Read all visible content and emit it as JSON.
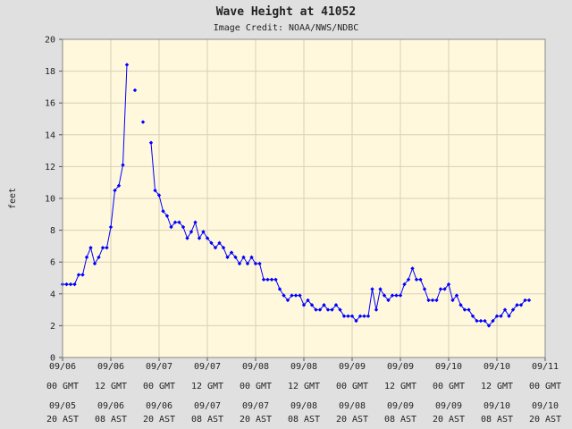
{
  "chart_data": {
    "type": "line",
    "title": "Wave Height at 41052",
    "subtitle": "Image Credit: NOAA/NWS/NDBC",
    "ylabel": "feet",
    "xlabel": "",
    "ylim": [
      0,
      20
    ],
    "yticks": [
      0,
      2,
      4,
      6,
      8,
      10,
      12,
      14,
      16,
      18,
      20
    ],
    "xlim": [
      0,
      120
    ],
    "grid": true,
    "xticks": [
      {
        "hour": 0,
        "gmt": [
          "09/06",
          "00 GMT"
        ],
        "ast": [
          "09/05",
          "20 AST"
        ]
      },
      {
        "hour": 12,
        "gmt": [
          "09/06",
          "12 GMT"
        ],
        "ast": [
          "09/06",
          "08 AST"
        ]
      },
      {
        "hour": 24,
        "gmt": [
          "09/07",
          "00 GMT"
        ],
        "ast": [
          "09/06",
          "20 AST"
        ]
      },
      {
        "hour": 36,
        "gmt": [
          "09/07",
          "12 GMT"
        ],
        "ast": [
          "09/07",
          "08 AST"
        ]
      },
      {
        "hour": 48,
        "gmt": [
          "09/08",
          "00 GMT"
        ],
        "ast": [
          "09/07",
          "20 AST"
        ]
      },
      {
        "hour": 60,
        "gmt": [
          "09/08",
          "12 GMT"
        ],
        "ast": [
          "09/08",
          "08 AST"
        ]
      },
      {
        "hour": 72,
        "gmt": [
          "09/09",
          "00 GMT"
        ],
        "ast": [
          "09/08",
          "20 AST"
        ]
      },
      {
        "hour": 84,
        "gmt": [
          "09/09",
          "12 GMT"
        ],
        "ast": [
          "09/09",
          "08 AST"
        ]
      },
      {
        "hour": 96,
        "gmt": [
          "09/10",
          "00 GMT"
        ],
        "ast": [
          "09/09",
          "20 AST"
        ]
      },
      {
        "hour": 108,
        "gmt": [
          "09/10",
          "12 GMT"
        ],
        "ast": [
          "09/10",
          "08 AST"
        ]
      },
      {
        "hour": 120,
        "gmt": [
          "09/11",
          "00 GMT"
        ],
        "ast": [
          "09/10",
          "20 AST"
        ]
      }
    ],
    "colors": {
      "background": "#e0e0e0",
      "plot_bg": "#fff8dc",
      "grid": "#d8d0b8",
      "line": "#0000ff",
      "marker": "#0000ff"
    },
    "series": [
      {
        "x": [
          0,
          1,
          2,
          3,
          4,
          5,
          6,
          7,
          8,
          9,
          10,
          11,
          12,
          13,
          14,
          15,
          16,
          17,
          18,
          19,
          20,
          21,
          22,
          23,
          24,
          25,
          26,
          27,
          28,
          29,
          30,
          31,
          32,
          33,
          34,
          35,
          36,
          37,
          38,
          39,
          40,
          41,
          42,
          43,
          44,
          45,
          46,
          47,
          48,
          49,
          50,
          51,
          52,
          53,
          54,
          55,
          56,
          57,
          58,
          59,
          60,
          61,
          62,
          63,
          64,
          65,
          66,
          67,
          68,
          69,
          70,
          71,
          72,
          73,
          74,
          75,
          76,
          77,
          78,
          79,
          80,
          81,
          82,
          83,
          84,
          85,
          86,
          87,
          88,
          89,
          90,
          91,
          92,
          93,
          94,
          95,
          96,
          97,
          98,
          99,
          100,
          101,
          102,
          103,
          104,
          105,
          106,
          107,
          108,
          109,
          110,
          111,
          112,
          113,
          114,
          115,
          116
        ],
        "y": [
          4.6,
          4.6,
          4.6,
          4.6,
          5.2,
          5.2,
          6.3,
          6.9,
          5.9,
          6.3,
          6.9,
          6.9,
          8.2,
          10.5,
          10.8,
          12.1,
          18.4,
          null,
          16.8,
          null,
          14.8,
          null,
          13.5,
          10.5,
          10.2,
          9.2,
          8.9,
          8.2,
          8.5,
          8.5,
          8.2,
          7.5,
          7.9,
          8.5,
          7.5,
          7.9,
          7.5,
          7.2,
          6.9,
          7.2,
          6.9,
          6.3,
          6.6,
          6.3,
          5.9,
          6.3,
          5.9,
          6.3,
          5.9,
          5.9,
          4.9,
          4.9,
          4.9,
          4.9,
          4.3,
          3.9,
          3.6,
          3.9,
          3.9,
          3.9,
          3.3,
          3.6,
          3.3,
          3.0,
          3.0,
          3.3,
          3.0,
          3.0,
          3.3,
          3.0,
          2.6,
          2.6,
          2.6,
          2.3,
          2.6,
          2.6,
          2.6,
          4.3,
          3.0,
          4.3,
          3.9,
          3.6,
          3.9,
          3.9,
          3.9,
          4.6,
          4.9,
          5.6,
          4.9,
          4.9,
          4.3,
          3.6,
          3.6,
          3.6,
          4.3,
          4.3,
          4.6,
          3.6,
          3.9,
          3.3,
          3.0,
          3.0,
          2.6,
          2.3,
          2.3,
          2.3,
          2.0,
          2.3,
          2.6,
          2.6,
          3.0,
          2.6,
          3.0,
          3.3,
          3.3,
          3.6,
          3.6
        ]
      }
    ]
  }
}
